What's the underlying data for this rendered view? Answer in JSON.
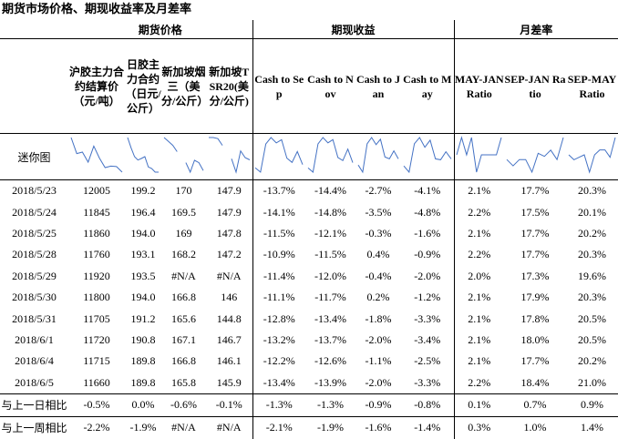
{
  "title": "期货市场价格、期现收益率及月差率",
  "table": {
    "groups": [
      "期货价格",
      "期现收益",
      "月差率"
    ],
    "columns": [
      "沪胶主力合约结算价（元/吨）",
      "日胶主力合约（日元/公斤）",
      "新加坡烟三（美分/公斤）",
      "新加坡TSR20(美分/公斤)",
      "Cash to Sep",
      "Cash to Nov",
      "Cash to Jan",
      "Cash to May",
      "MAY-JAN Ratio",
      "SEP-JAN Ratio",
      "SEP-MAY Ratio"
    ],
    "sparkline_label": "迷你图",
    "rows": [
      [
        "2018/5/23",
        "12005",
        "199.2",
        "170",
        "147.9",
        "-13.7%",
        "-14.4%",
        "-2.7%",
        "-4.1%",
        "2.1%",
        "17.7%",
        "20.3%"
      ],
      [
        "2018/5/24",
        "11845",
        "196.4",
        "169.5",
        "147.9",
        "-14.1%",
        "-14.8%",
        "-3.5%",
        "-4.8%",
        "2.2%",
        "17.5%",
        "20.1%"
      ],
      [
        "2018/5/25",
        "11860",
        "194.0",
        "169",
        "147.8",
        "-11.5%",
        "-12.1%",
        "-0.3%",
        "-1.6%",
        "2.1%",
        "17.7%",
        "20.2%"
      ],
      [
        "2018/5/28",
        "11760",
        "193.1",
        "168.2",
        "147.2",
        "-10.9%",
        "-11.5%",
        "0.4%",
        "-0.9%",
        "2.2%",
        "17.7%",
        "20.3%"
      ],
      [
        "2018/5/29",
        "11920",
        "193.5",
        "#N/A",
        "#N/A",
        "-11.4%",
        "-12.0%",
        "-0.4%",
        "-2.0%",
        "2.0%",
        "17.3%",
        "19.6%"
      ],
      [
        "2018/5/30",
        "11800",
        "194.0",
        "166.8",
        "146",
        "-11.1%",
        "-11.7%",
        "0.2%",
        "-1.2%",
        "2.1%",
        "17.9%",
        "20.3%"
      ],
      [
        "2018/5/31",
        "11705",
        "191.2",
        "165.6",
        "144.8",
        "-12.8%",
        "-13.4%",
        "-1.8%",
        "-3.3%",
        "2.1%",
        "17.8%",
        "20.5%"
      ],
      [
        "2018/6/1",
        "11720",
        "190.8",
        "167.1",
        "146.7",
        "-13.2%",
        "-13.7%",
        "-2.0%",
        "-3.4%",
        "2.1%",
        "18.0%",
        "20.5%"
      ],
      [
        "2018/6/4",
        "11715",
        "189.8",
        "166.8",
        "146.1",
        "-12.2%",
        "-12.6%",
        "-1.1%",
        "-2.5%",
        "2.1%",
        "17.7%",
        "20.2%"
      ],
      [
        "2018/6/5",
        "11660",
        "189.8",
        "165.8",
        "145.9",
        "-13.4%",
        "-13.9%",
        "-2.0%",
        "-3.3%",
        "2.2%",
        "18.4%",
        "21.0%"
      ],
      [
        "与上一日相比",
        "-0.5%",
        "0.0%",
        "-0.6%",
        "-0.1%",
        "-1.3%",
        "-1.3%",
        "-0.9%",
        "-0.8%",
        "0.1%",
        "0.7%",
        "0.9%"
      ],
      [
        "与上一周相比",
        "-2.2%",
        "-1.9%",
        "#N/A",
        "#N/A",
        "-2.1%",
        "-1.9%",
        "-1.6%",
        "-1.4%",
        "0.3%",
        "1.0%",
        "1.4%"
      ]
    ]
  }
}
